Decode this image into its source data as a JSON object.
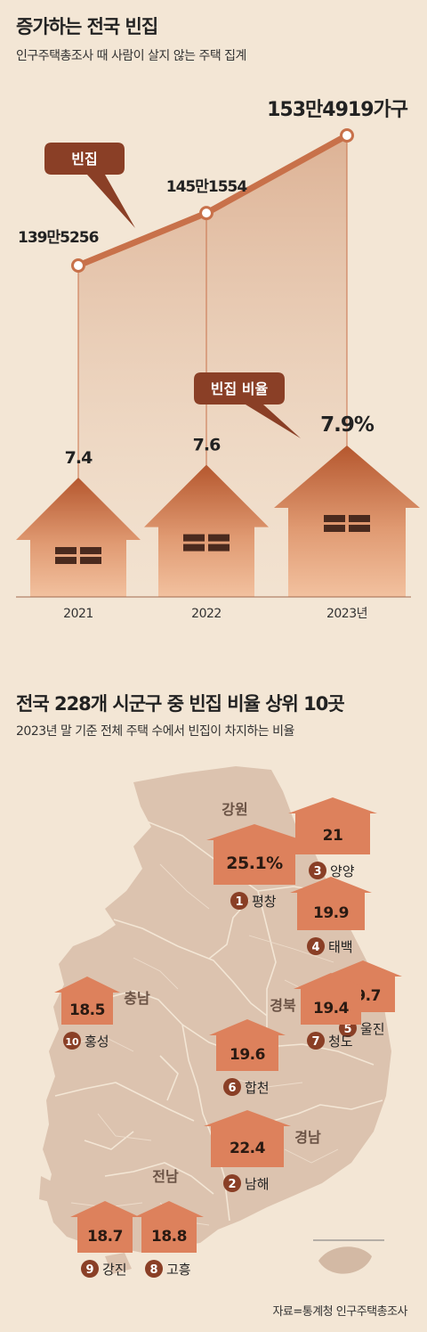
{
  "section1": {
    "title": "증가하는 전국 빈집",
    "subtitle": "인구주택총조사 때 사람이 살지 않는 주택 집계",
    "vacant_tag": "빈집",
    "ratio_tag": "빈집 비율"
  },
  "section2": {
    "title": "전국 228개 시군구 중 빈집 비율 상위 10곳",
    "subtitle": "2023년 말 기준 전체 주택 수에서 빈집이 차지하는 비율"
  },
  "source": "자료=통계청 인구주택총조사",
  "colors": {
    "background": "#f3e6d5",
    "line": "#c8714a",
    "house_top": "#b5572e",
    "house_bottom": "#efb591",
    "map_land": "#dcc3af",
    "marker": "#dd815c",
    "dark_brown": "#8a3f26"
  },
  "chart_data": [
    {
      "type": "line",
      "x": [
        "2021",
        "2022",
        "2023년"
      ],
      "series": [
        {
          "name": "빈집",
          "values": [
            1395256,
            1451554,
            1534919
          ]
        }
      ],
      "labels": [
        "139만5256",
        "145만1554",
        "153만4919가구"
      ]
    },
    {
      "type": "bar",
      "categories": [
        "2021",
        "2022",
        "2023년"
      ],
      "series": [
        {
          "name": "빈집 비율",
          "values": [
            7.4,
            7.6,
            7.9
          ]
        }
      ],
      "labels": [
        "7.4",
        "7.6",
        "7.9%"
      ]
    },
    {
      "type": "map",
      "regions": [
        "강원",
        "충남",
        "경북",
        "전남",
        "경남"
      ],
      "ranking": [
        {
          "rank": 1,
          "name": "평창",
          "value": 25.1,
          "label": "25.1%"
        },
        {
          "rank": 2,
          "name": "남해",
          "value": 22.4,
          "label": "22.4"
        },
        {
          "rank": 3,
          "name": "양양",
          "value": 21,
          "label": "21"
        },
        {
          "rank": 4,
          "name": "태백",
          "value": 19.9,
          "label": "19.9"
        },
        {
          "rank": 5,
          "name": "울진",
          "value": 19.7,
          "label": "19.7"
        },
        {
          "rank": 6,
          "name": "합천",
          "value": 19.6,
          "label": "19.6"
        },
        {
          "rank": 7,
          "name": "청도",
          "value": 19.4,
          "label": "19.4"
        },
        {
          "rank": 8,
          "name": "고흥",
          "value": 18.8,
          "label": "18.8"
        },
        {
          "rank": 9,
          "name": "강진",
          "value": 18.7,
          "label": "18.7"
        },
        {
          "rank": 10,
          "name": "홍성",
          "value": 18.5,
          "label": "18.5"
        }
      ]
    }
  ]
}
